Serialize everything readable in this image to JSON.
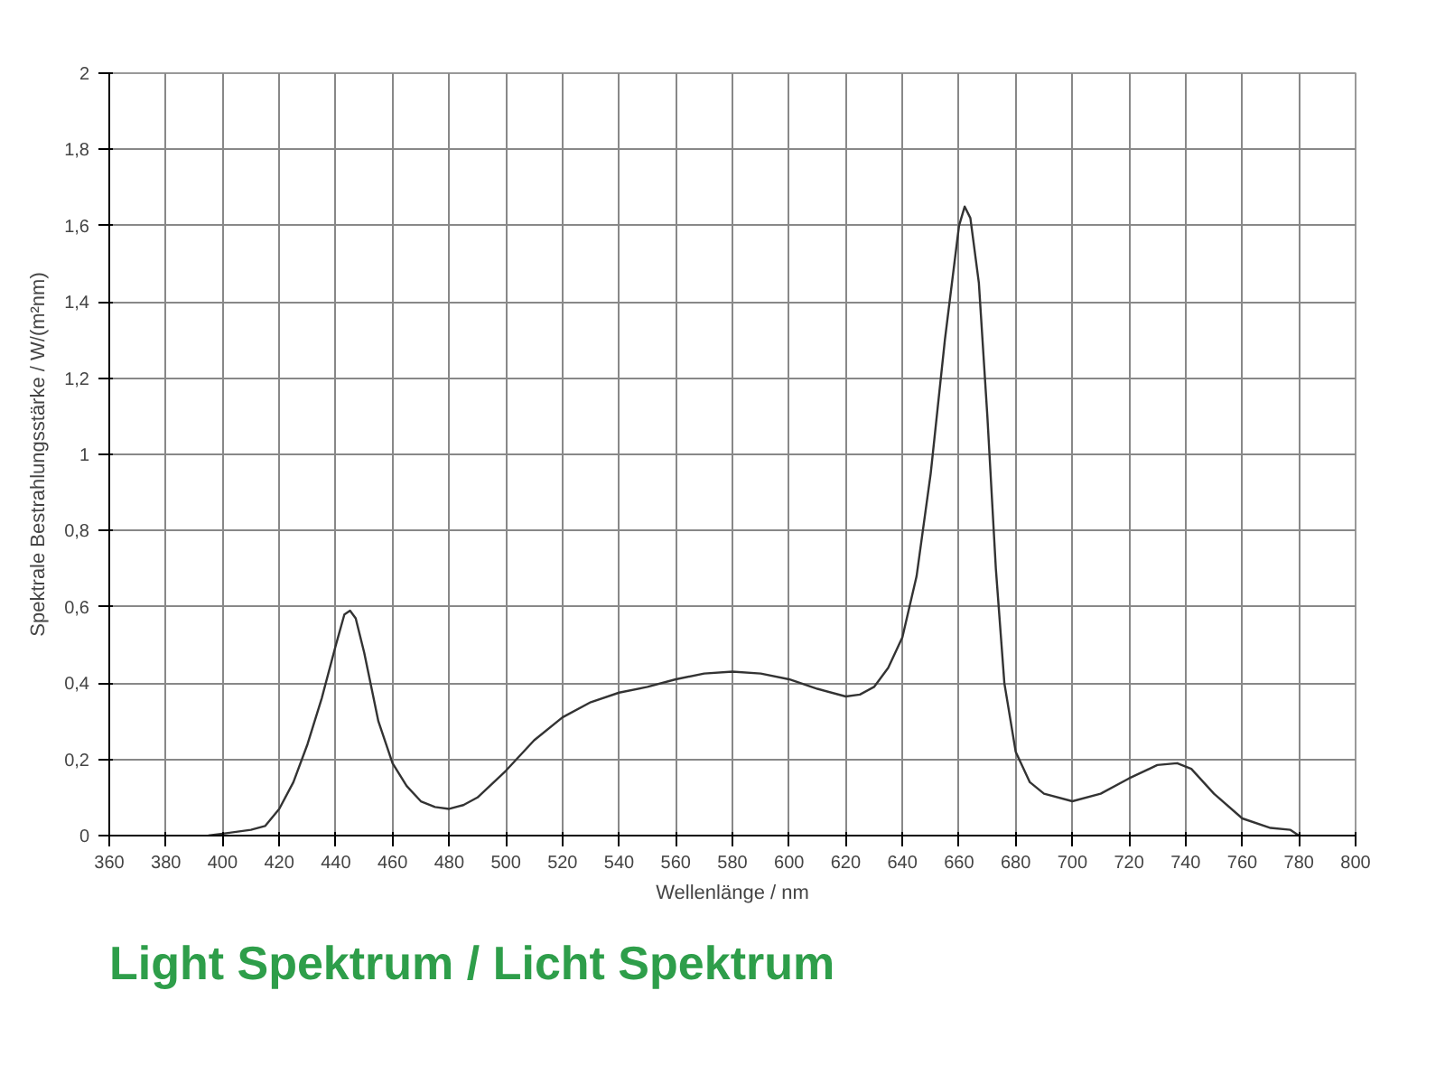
{
  "chart_data": {
    "type": "line",
    "title": "Light Spektrum / Licht Spektrum",
    "xlabel": "Wellenlänge / nm",
    "ylabel": "Spektrale Bestrahlungsstärke / W/(m²nm)",
    "x": [
      395,
      400,
      410,
      415,
      420,
      425,
      430,
      435,
      440,
      443,
      445,
      447,
      450,
      455,
      460,
      465,
      470,
      475,
      480,
      485,
      490,
      500,
      510,
      520,
      530,
      540,
      550,
      560,
      570,
      580,
      590,
      600,
      610,
      620,
      625,
      630,
      635,
      640,
      645,
      650,
      655,
      660,
      662,
      664,
      667,
      670,
      673,
      676,
      680,
      685,
      690,
      700,
      710,
      720,
      730,
      737,
      742,
      750,
      760,
      770,
      777,
      780
    ],
    "series": [
      {
        "color": "#333333",
        "values": [
          0,
          0.005,
          0.015,
          0.025,
          0.07,
          0.14,
          0.24,
          0.36,
          0.5,
          0.58,
          0.59,
          0.57,
          0.48,
          0.3,
          0.19,
          0.13,
          0.09,
          0.075,
          0.07,
          0.08,
          0.1,
          0.17,
          0.25,
          0.31,
          0.35,
          0.375,
          0.39,
          0.41,
          0.425,
          0.43,
          0.425,
          0.41,
          0.385,
          0.365,
          0.37,
          0.39,
          0.44,
          0.52,
          0.68,
          0.95,
          1.3,
          1.6,
          1.65,
          1.62,
          1.45,
          1.1,
          0.7,
          0.4,
          0.22,
          0.14,
          0.11,
          0.09,
          0.11,
          0.15,
          0.185,
          0.19,
          0.175,
          0.11,
          0.045,
          0.02,
          0.015,
          0
        ]
      }
    ],
    "xlim": [
      360,
      800
    ],
    "xticks": [
      360,
      380,
      400,
      420,
      440,
      460,
      480,
      500,
      520,
      540,
      560,
      580,
      600,
      620,
      640,
      660,
      680,
      700,
      720,
      740,
      760,
      780,
      800
    ],
    "ylim": [
      0,
      2
    ],
    "yticks": [
      0,
      {
        "value": 0.2,
        "label": "0,2"
      },
      {
        "value": 0.4,
        "label": "0,4"
      },
      {
        "value": 0.6,
        "label": "0,6"
      },
      {
        "value": 0.8,
        "label": "0,8"
      },
      1,
      {
        "value": 1.2,
        "label": "1,2"
      },
      {
        "value": 1.4,
        "label": "1,4"
      },
      {
        "value": 1.6,
        "label": "1,6"
      },
      {
        "value": 1.8,
        "label": "1,8"
      },
      2
    ],
    "grid": true,
    "marker": "none",
    "line_style": "solid"
  }
}
